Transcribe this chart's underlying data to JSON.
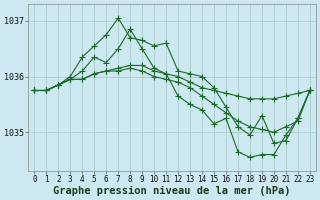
{
  "title": "Graphe pression niveau de la mer (hPa)",
  "bg_color": "#cde8f0",
  "grid_color": "#aacccc",
  "line_color": "#1a6b2a",
  "x_labels": [
    "0",
    "1",
    "2",
    "3",
    "4",
    "5",
    "6",
    "7",
    "8",
    "9",
    "10",
    "11",
    "12",
    "13",
    "14",
    "15",
    "16",
    "17",
    "18",
    "19",
    "20",
    "21",
    "22",
    "23"
  ],
  "ylim": [
    1034.3,
    1037.3
  ],
  "yticks": [
    1035,
    1036,
    1037
  ],
  "series": [
    [
      1035.75,
      1035.75,
      1035.85,
      1035.95,
      1035.95,
      1036.05,
      1036.1,
      1036.15,
      1036.2,
      1036.2,
      1036.1,
      1036.05,
      1036.0,
      1035.9,
      1035.8,
      1035.75,
      1035.7,
      1035.65,
      1035.6,
      1035.6,
      1035.6,
      1035.65,
      1035.7,
      1035.75
    ],
    [
      1035.75,
      1035.75,
      1035.85,
      1036.0,
      1036.35,
      1036.55,
      1036.75,
      1037.05,
      1036.7,
      1036.65,
      1036.55,
      1036.6,
      1036.1,
      1036.05,
      1036.0,
      1035.8,
      1035.45,
      1035.1,
      1034.95,
      1035.3,
      1034.8,
      1034.85,
      1035.25,
      1035.75
    ],
    [
      1035.75,
      1035.75,
      1035.85,
      1035.95,
      1036.1,
      1036.35,
      1036.25,
      1036.5,
      1036.85,
      1036.5,
      1036.15,
      1036.05,
      1035.65,
      1035.5,
      1035.4,
      1035.15,
      1035.25,
      1034.65,
      1034.55,
      1034.6,
      1034.6,
      1034.95,
      1035.25,
      1035.75
    ],
    [
      1035.75,
      1035.75,
      1035.85,
      1035.95,
      1035.95,
      1036.05,
      1036.1,
      1036.1,
      1036.15,
      1036.1,
      1036.0,
      1035.95,
      1035.9,
      1035.8,
      1035.65,
      1035.5,
      1035.35,
      1035.2,
      1035.1,
      1035.05,
      1035.0,
      1035.1,
      1035.2,
      1035.75
    ]
  ],
  "marker": "+",
  "marker_size": 4,
  "linewidth": 0.8,
  "title_fontsize": 7.5,
  "tick_fontsize": 5.5,
  "ytick_fontsize": 6.0
}
